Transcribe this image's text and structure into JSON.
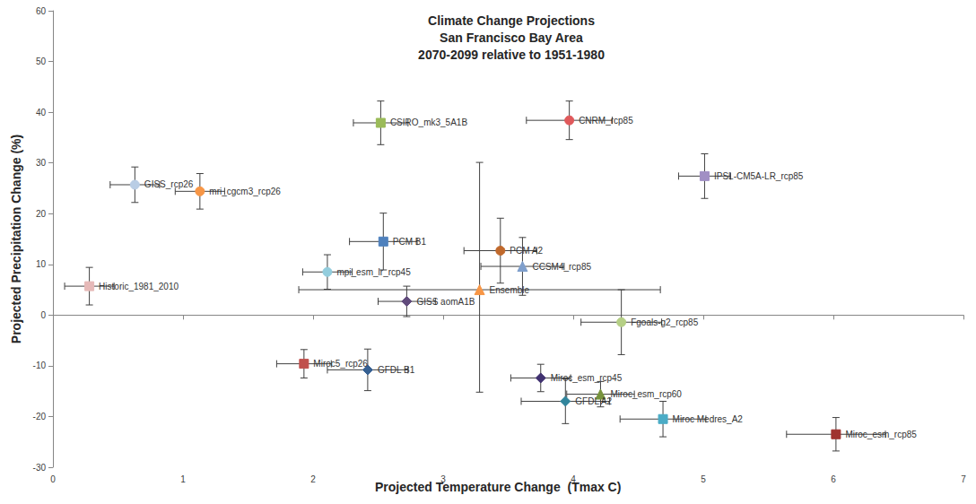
{
  "chart_data": {
    "type": "scatter",
    "title": "Climate Change Projections\nSan Francisco Bay Area\n2070-2099 relative to 1951-1980",
    "x_label": "Projected Temperature Change  (Tmax C)",
    "y_label": "Projected Precipitation Change (%)",
    "xlim": [
      0,
      7
    ],
    "xticks": [
      0,
      1,
      2,
      3,
      4,
      5,
      6,
      7
    ],
    "ylim": [
      -30,
      60
    ],
    "yticks": [
      -30,
      -20,
      -10,
      0,
      10,
      20,
      30,
      40,
      50,
      60
    ],
    "grid": false,
    "series": [
      {
        "name": "Historic_1981_2010",
        "color": "#e6b9b8",
        "marker": "square",
        "values": [
          [
            0.28,
            5.7
          ]
        ],
        "xerr": [
          [
            0.19,
            0.19
          ]
        ],
        "yerr": [
          [
            3.7,
            3.7
          ]
        ]
      },
      {
        "name": "GISS_rcp26",
        "color": "#b9cde5",
        "marker": "circle",
        "values": [
          [
            0.63,
            25.7
          ]
        ],
        "xerr": [
          [
            0.19,
            0.19
          ]
        ],
        "yerr": [
          [
            3.5,
            3.5
          ]
        ]
      },
      {
        "name": "mri_cgcm3_rcp26",
        "color": "#f79646",
        "marker": "circle",
        "values": [
          [
            1.13,
            24.4
          ]
        ],
        "xerr": [
          [
            0.19,
            0.19
          ]
        ],
        "yerr": [
          [
            3.5,
            3.5
          ]
        ]
      },
      {
        "name": "CSIRO_mk3_5A1B",
        "color": "#9bbb59",
        "marker": "square",
        "values": [
          [
            2.52,
            37.9
          ]
        ],
        "xerr": [
          [
            0.21,
            0.21
          ]
        ],
        "yerr": [
          [
            4.3,
            4.3
          ]
        ]
      },
      {
        "name": "CNRM_rcp85",
        "color": "#e0595b",
        "marker": "circle",
        "values": [
          [
            3.97,
            38.4
          ]
        ],
        "xerr": [
          [
            0.33,
            0.33
          ]
        ],
        "yerr": [
          [
            3.8,
            3.8
          ]
        ]
      },
      {
        "name": "IPSL-CM5A-LR_rcp85",
        "color": "#a18fc4",
        "marker": "square",
        "values": [
          [
            5.01,
            27.4
          ]
        ],
        "xerr": [
          [
            0.2,
            0.2
          ]
        ],
        "yerr": [
          [
            4.4,
            4.4
          ]
        ]
      },
      {
        "name": "PCM B1",
        "color": "#4f81bd",
        "marker": "square",
        "values": [
          [
            2.54,
            14.5
          ]
        ],
        "xerr": [
          [
            0.26,
            0.26
          ]
        ],
        "yerr": [
          [
            5.6,
            5.6
          ]
        ]
      },
      {
        "name": "PCM A2",
        "color": "#c0692c",
        "marker": "circle",
        "values": [
          [
            3.44,
            12.7
          ]
        ],
        "xerr": [
          [
            0.28,
            0.28
          ]
        ],
        "yerr": [
          [
            6.4,
            6.4
          ]
        ]
      },
      {
        "name": "CCSM4_rcp85",
        "color": "#7f9fcc",
        "marker": "triangle",
        "values": [
          [
            3.61,
            9.6
          ]
        ],
        "xerr": [
          [
            0.32,
            0.32
          ]
        ],
        "yerr": [
          [
            5.7,
            5.7
          ]
        ]
      },
      {
        "name": "mpi_esm_lr_rcp45",
        "color": "#93cddd",
        "marker": "circle",
        "values": [
          [
            2.11,
            8.5
          ]
        ],
        "xerr": [
          [
            0.19,
            0.19
          ]
        ],
        "yerr": [
          [
            3.4,
            3.4
          ]
        ]
      },
      {
        "name": "Ensemble",
        "color": "#f79646",
        "marker": "triangle",
        "values": [
          [
            3.28,
            5.0
          ]
        ],
        "xerr": [
          [
            1.39,
            1.39
          ]
        ],
        "yerr": [
          [
            20.2,
            25.1
          ]
        ]
      },
      {
        "name": "GISS aomA1B",
        "color": "#604a7b",
        "marker": "diamond",
        "values": [
          [
            2.72,
            2.7
          ]
        ],
        "xerr": [
          [
            0.22,
            0.22
          ]
        ],
        "yerr": [
          [
            3.0,
            3.0
          ]
        ]
      },
      {
        "name": "Fgoals-g2_rcp85",
        "color": "#b5cf85",
        "marker": "circle",
        "values": [
          [
            4.37,
            -1.4
          ]
        ],
        "xerr": [
          [
            0.31,
            0.31
          ]
        ],
        "yerr": [
          [
            6.4,
            6.4
          ]
        ]
      },
      {
        "name": "Miroc5_rcp26",
        "color": "#c0504d",
        "marker": "square",
        "values": [
          [
            1.93,
            -9.6
          ]
        ],
        "xerr": [
          [
            0.21,
            0.21
          ]
        ],
        "yerr": [
          [
            2.8,
            2.8
          ]
        ]
      },
      {
        "name": "GFDL B1",
        "color": "#366092",
        "marker": "diamond",
        "values": [
          [
            2.42,
            -10.8
          ]
        ],
        "xerr": [
          [
            0.31,
            0.31
          ]
        ],
        "yerr": [
          [
            4.1,
            4.1
          ]
        ]
      },
      {
        "name": "Miroc_esm_rcp45",
        "color": "#403170",
        "marker": "diamond",
        "values": [
          [
            3.75,
            -12.4
          ]
        ],
        "xerr": [
          [
            0.23,
            0.23
          ]
        ],
        "yerr": [
          [
            2.7,
            2.7
          ]
        ]
      },
      {
        "name": "Miroc_esm_rcp60",
        "color": "#77933c",
        "marker": "triangle",
        "values": [
          [
            4.21,
            -15.6
          ]
        ],
        "xerr": [
          [
            0.26,
            0.26
          ]
        ],
        "yerr": [
          [
            2.5,
            2.5
          ]
        ]
      },
      {
        "name": "GFDL A2",
        "color": "#31859c",
        "marker": "diamond",
        "values": [
          [
            3.94,
            -17.0
          ]
        ],
        "xerr": [
          [
            0.34,
            0.34
          ]
        ],
        "yerr": [
          [
            4.4,
            4.4
          ]
        ]
      },
      {
        "name": "Miroc Medres_A2",
        "color": "#4bacc6",
        "marker": "square",
        "values": [
          [
            4.69,
            -20.5
          ]
        ],
        "xerr": [
          [
            0.33,
            0.33
          ]
        ],
        "yerr": [
          [
            3.5,
            3.5
          ]
        ]
      },
      {
        "name": "Miroc_esm_rcp85",
        "color": "#a0322f",
        "marker": "square",
        "values": [
          [
            6.02,
            -23.5
          ]
        ],
        "xerr": [
          [
            0.38,
            0.38
          ]
        ],
        "yerr": [
          [
            3.3,
            3.3
          ]
        ]
      }
    ]
  }
}
